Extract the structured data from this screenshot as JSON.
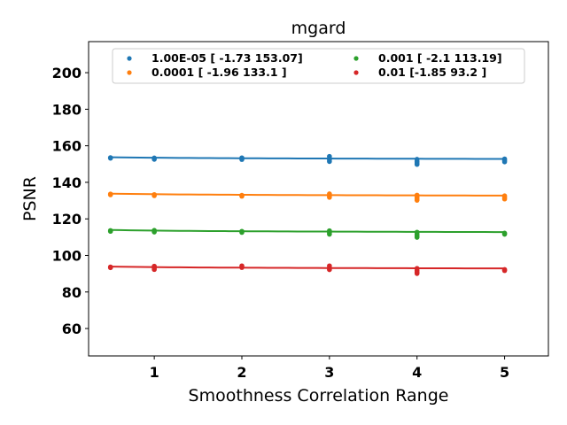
{
  "chart_data": {
    "type": "scatter",
    "title": "mgard",
    "xlabel": "Smoothness Correlation Range",
    "ylabel": "PSNR",
    "xlim": [
      0.25,
      5.5
    ],
    "ylim": [
      45,
      217
    ],
    "xticks": [
      1,
      2,
      3,
      4,
      5
    ],
    "yticks": [
      60,
      80,
      100,
      120,
      140,
      160,
      180,
      200
    ],
    "grid": false,
    "legend": {
      "location": "upper center",
      "columns": 2
    },
    "series": [
      {
        "name": "1.00E-05 [ -1.73 153.07]",
        "color": "#1f77b4",
        "fit": {
          "slope": -1.73,
          "intercept": 153.07
        },
        "points": [
          [
            0.5,
            153.5
          ],
          [
            0.5,
            153.2
          ],
          [
            1,
            153.3
          ],
          [
            1,
            152.6
          ],
          [
            2,
            153.4
          ],
          [
            2,
            152.5
          ],
          [
            3,
            154.2
          ],
          [
            3,
            153.1
          ],
          [
            3,
            152.3
          ],
          [
            3,
            151.4
          ],
          [
            4,
            152.6
          ],
          [
            4,
            151.5
          ],
          [
            4,
            150.6
          ],
          [
            4,
            149.8
          ],
          [
            5,
            152.8
          ],
          [
            5,
            152.0
          ],
          [
            5,
            151.2
          ]
        ]
      },
      {
        "name": "0.0001 [ -1.96 133.1 ]",
        "color": "#ff7f0e",
        "fit": {
          "slope": -1.96,
          "intercept": 133.1
        },
        "points": [
          [
            0.5,
            133.6
          ],
          [
            0.5,
            133.2
          ],
          [
            1,
            133.3
          ],
          [
            1,
            132.7
          ],
          [
            2,
            132.9
          ],
          [
            2,
            132.4
          ],
          [
            3,
            133.7
          ],
          [
            3,
            132.6
          ],
          [
            3,
            131.8
          ],
          [
            4,
            133.0
          ],
          [
            4,
            131.9
          ],
          [
            4,
            131.0
          ],
          [
            4,
            130.2
          ],
          [
            5,
            132.6
          ],
          [
            5,
            131.7
          ],
          [
            5,
            130.9
          ]
        ]
      },
      {
        "name": "0.001 [ -2.1  113.19]",
        "color": "#2ca02c",
        "fit": {
          "slope": -2.1,
          "intercept": 113.19
        },
        "points": [
          [
            0.5,
            113.6
          ],
          [
            0.5,
            113.2
          ],
          [
            1,
            113.7
          ],
          [
            1,
            112.8
          ],
          [
            2,
            113.2
          ],
          [
            2,
            112.6
          ],
          [
            3,
            113.5
          ],
          [
            3,
            112.4
          ],
          [
            3,
            111.6
          ],
          [
            4,
            112.7
          ],
          [
            4,
            111.6
          ],
          [
            4,
            110.7
          ],
          [
            4,
            109.9
          ],
          [
            5,
            112.2
          ],
          [
            5,
            111.6
          ]
        ]
      },
      {
        "name": "0.01 [-1.85 93.2 ]",
        "color": "#d62728",
        "fit": {
          "slope": -1.85,
          "intercept": 93.2
        },
        "points": [
          [
            0.5,
            93.7
          ],
          [
            0.5,
            93.3
          ],
          [
            1,
            94.1
          ],
          [
            1,
            93.0
          ],
          [
            1,
            92.3
          ],
          [
            2,
            94.3
          ],
          [
            2,
            93.4
          ],
          [
            3,
            94.3
          ],
          [
            3,
            93.2
          ],
          [
            3,
            92.2
          ],
          [
            4,
            92.9
          ],
          [
            4,
            91.8
          ],
          [
            4,
            90.9
          ],
          [
            4,
            90.1
          ],
          [
            5,
            92.3
          ],
          [
            5,
            91.7
          ]
        ]
      }
    ]
  }
}
